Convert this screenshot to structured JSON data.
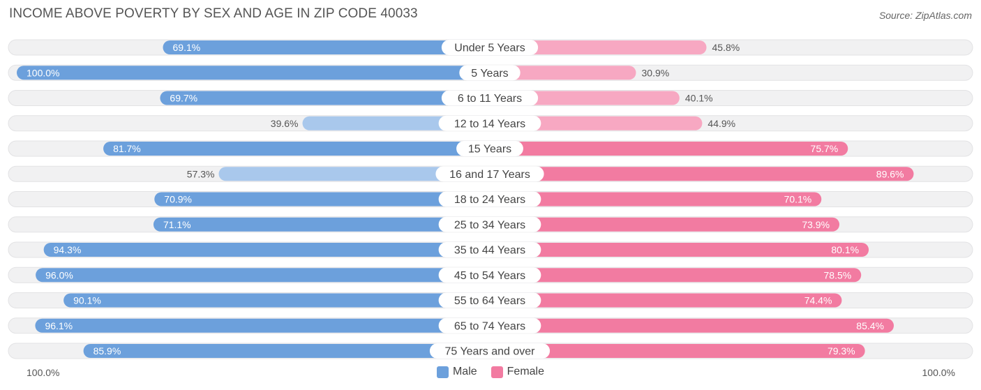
{
  "title": "INCOME ABOVE POVERTY BY SEX AND AGE IN ZIP CODE 40033",
  "source": "Source: ZipAtlas.com",
  "axis": {
    "left_label": "100.0%",
    "right_label": "100.0%"
  },
  "colors": {
    "male_strong": "#6ca0dc",
    "male_light": "#a9c8ec",
    "female_strong": "#f27ba1",
    "female_light": "#f7a8c2",
    "track": "#eeeeef"
  },
  "chart_data": {
    "type": "bar",
    "orientation": "horizontal-diverging",
    "title": "INCOME ABOVE POVERTY BY SEX AND AGE IN ZIP CODE 40033",
    "categories": [
      "Under 5 Years",
      "5 Years",
      "6 to 11 Years",
      "12 to 14 Years",
      "15 Years",
      "16 and 17 Years",
      "18 to 24 Years",
      "25 to 34 Years",
      "35 to 44 Years",
      "45 to 54 Years",
      "55 to 64 Years",
      "65 to 74 Years",
      "75 Years and over"
    ],
    "series": [
      {
        "name": "Male",
        "values": [
          69.1,
          100.0,
          69.7,
          39.6,
          81.7,
          57.3,
          70.9,
          71.1,
          94.3,
          96.0,
          90.1,
          96.1,
          85.9
        ],
        "labels": [
          "69.1%",
          "100.0%",
          "69.7%",
          "39.6%",
          "81.7%",
          "57.3%",
          "70.9%",
          "71.1%",
          "94.3%",
          "96.0%",
          "90.1%",
          "96.1%",
          "85.9%"
        ]
      },
      {
        "name": "Female",
        "values": [
          45.8,
          30.9,
          40.1,
          44.9,
          75.7,
          89.6,
          70.1,
          73.9,
          80.1,
          78.5,
          74.4,
          85.4,
          79.3
        ],
        "labels": [
          "45.8%",
          "30.9%",
          "40.1%",
          "44.9%",
          "75.7%",
          "89.6%",
          "70.1%",
          "73.9%",
          "80.1%",
          "78.5%",
          "74.4%",
          "85.4%",
          "79.3%"
        ]
      }
    ],
    "xlim": [
      0,
      100
    ],
    "legend": [
      "Male",
      "Female"
    ],
    "legend_position": "bottom-center"
  }
}
